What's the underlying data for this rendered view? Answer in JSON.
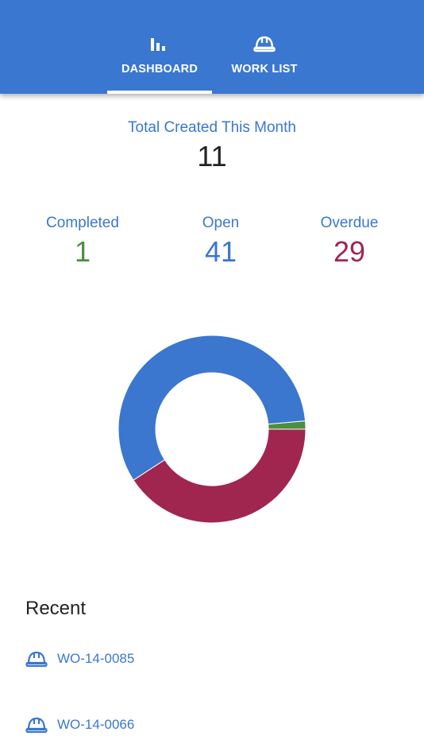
{
  "tabs": [
    "DASHBOARD",
    "WORK LIST"
  ],
  "summary": {
    "label": "Total Created This Month",
    "value": "11"
  },
  "chart_data": {
    "type": "donut",
    "categories": [
      "Completed",
      "Open",
      "Overdue"
    ],
    "values": [
      1,
      41,
      29
    ],
    "colors": [
      "#4b8f3f",
      "#3b76cf",
      "#a0264f"
    ]
  },
  "recent": {
    "title": "Recent",
    "items": [
      "WO-14-0085",
      "WO-14-0066"
    ]
  }
}
